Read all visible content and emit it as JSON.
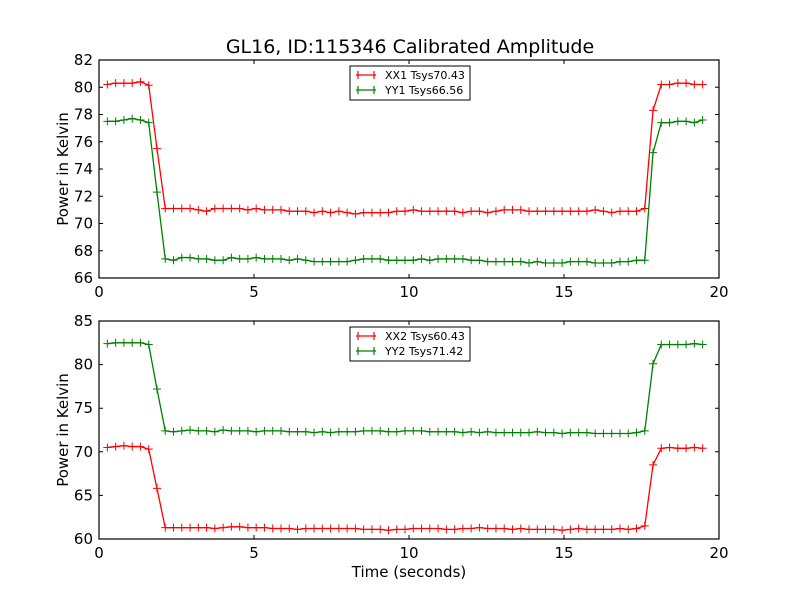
{
  "chart_data": {
    "title": "GL16, ID:115346 Calibrated Amplitude",
    "x_start": 0.27,
    "x_step": 0.2667,
    "panels": [
      {
        "type": "line",
        "xlabel": "",
        "ylabel": "Power in Kelvin",
        "xlim": [
          0,
          20
        ],
        "ylim": [
          66,
          82
        ],
        "xticks": [
          0,
          5,
          10,
          15,
          20
        ],
        "yticks": [
          66,
          68,
          70,
          72,
          74,
          76,
          78,
          80,
          82
        ],
        "legend": "upper-center",
        "series": [
          {
            "name": "XX1 Tsys70.43",
            "color": "#ff0000",
            "values": [
              80.2,
              80.3,
              80.3,
              80.3,
              80.4,
              80.15,
              75.5,
              71.1,
              71.1,
              71.1,
              71.1,
              71.0,
              70.9,
              71.1,
              71.1,
              71.1,
              71.1,
              71.0,
              71.1,
              71.0,
              71.0,
              71.0,
              70.9,
              70.9,
              70.9,
              70.8,
              70.9,
              70.8,
              70.9,
              70.8,
              70.7,
              70.8,
              70.8,
              70.8,
              70.8,
              70.9,
              70.9,
              71.0,
              70.9,
              70.9,
              70.9,
              70.9,
              70.9,
              70.8,
              70.9,
              70.9,
              70.8,
              70.9,
              71.0,
              71.0,
              71.0,
              70.9,
              70.9,
              70.9,
              70.9,
              70.9,
              70.9,
              70.9,
              70.9,
              71.0,
              70.9,
              70.8,
              70.9,
              70.9,
              70.9,
              71.1,
              78.3,
              80.2,
              80.2,
              80.3,
              80.3,
              80.2,
              80.2
            ]
          },
          {
            "name": "YY1 Tsys66.56",
            "color": "#008000",
            "values": [
              77.5,
              77.5,
              77.6,
              77.7,
              77.6,
              77.4,
              72.3,
              67.4,
              67.3,
              67.5,
              67.5,
              67.4,
              67.4,
              67.3,
              67.3,
              67.5,
              67.4,
              67.4,
              67.5,
              67.4,
              67.4,
              67.4,
              67.3,
              67.4,
              67.3,
              67.2,
              67.2,
              67.2,
              67.2,
              67.2,
              67.3,
              67.4,
              67.4,
              67.4,
              67.3,
              67.3,
              67.3,
              67.3,
              67.4,
              67.3,
              67.4,
              67.4,
              67.4,
              67.4,
              67.3,
              67.3,
              67.2,
              67.2,
              67.2,
              67.2,
              67.2,
              67.1,
              67.2,
              67.1,
              67.1,
              67.1,
              67.2,
              67.2,
              67.2,
              67.1,
              67.1,
              67.1,
              67.2,
              67.2,
              67.3,
              67.3,
              75.2,
              77.4,
              77.4,
              77.5,
              77.5,
              77.4,
              77.6
            ]
          }
        ]
      },
      {
        "type": "line",
        "xlabel": "Time (seconds)",
        "ylabel": "Power in Kelvin",
        "xlim": [
          0,
          20
        ],
        "ylim": [
          60,
          85
        ],
        "xticks": [
          0,
          5,
          10,
          15,
          20
        ],
        "yticks": [
          60,
          65,
          70,
          75,
          80,
          85
        ],
        "legend": "upper-center",
        "series": [
          {
            "name": "XX2 Tsys60.43",
            "color": "#ff0000",
            "values": [
              70.5,
              70.6,
              70.7,
              70.6,
              70.6,
              70.3,
              65.8,
              61.3,
              61.3,
              61.3,
              61.3,
              61.3,
              61.3,
              61.2,
              61.3,
              61.4,
              61.4,
              61.3,
              61.3,
              61.3,
              61.2,
              61.2,
              61.2,
              61.1,
              61.2,
              61.2,
              61.2,
              61.2,
              61.2,
              61.2,
              61.2,
              61.1,
              61.1,
              61.1,
              61.0,
              61.1,
              61.1,
              61.2,
              61.2,
              61.2,
              61.2,
              61.1,
              61.1,
              61.2,
              61.2,
              61.3,
              61.2,
              61.2,
              61.2,
              61.1,
              61.2,
              61.1,
              61.1,
              61.1,
              61.1,
              61.0,
              61.1,
              61.2,
              61.1,
              61.1,
              61.1,
              61.1,
              61.2,
              61.1,
              61.2,
              61.5,
              68.5,
              70.4,
              70.5,
              70.4,
              70.4,
              70.5,
              70.4
            ]
          },
          {
            "name": "YY2 Tsys71.42",
            "color": "#008000",
            "values": [
              82.4,
              82.5,
              82.5,
              82.5,
              82.5,
              82.3,
              77.2,
              72.4,
              72.3,
              72.4,
              72.5,
              72.4,
              72.4,
              72.3,
              72.5,
              72.4,
              72.4,
              72.4,
              72.3,
              72.4,
              72.4,
              72.4,
              72.3,
              72.3,
              72.3,
              72.2,
              72.3,
              72.2,
              72.3,
              72.3,
              72.3,
              72.4,
              72.4,
              72.4,
              72.3,
              72.3,
              72.4,
              72.4,
              72.4,
              72.3,
              72.3,
              72.3,
              72.3,
              72.2,
              72.3,
              72.2,
              72.3,
              72.2,
              72.2,
              72.2,
              72.2,
              72.2,
              72.3,
              72.2,
              72.2,
              72.1,
              72.2,
              72.2,
              72.2,
              72.1,
              72.1,
              72.1,
              72.1,
              72.1,
              72.2,
              72.4,
              80.1,
              82.3,
              82.3,
              82.3,
              82.3,
              82.4,
              82.3
            ]
          }
        ]
      }
    ]
  }
}
